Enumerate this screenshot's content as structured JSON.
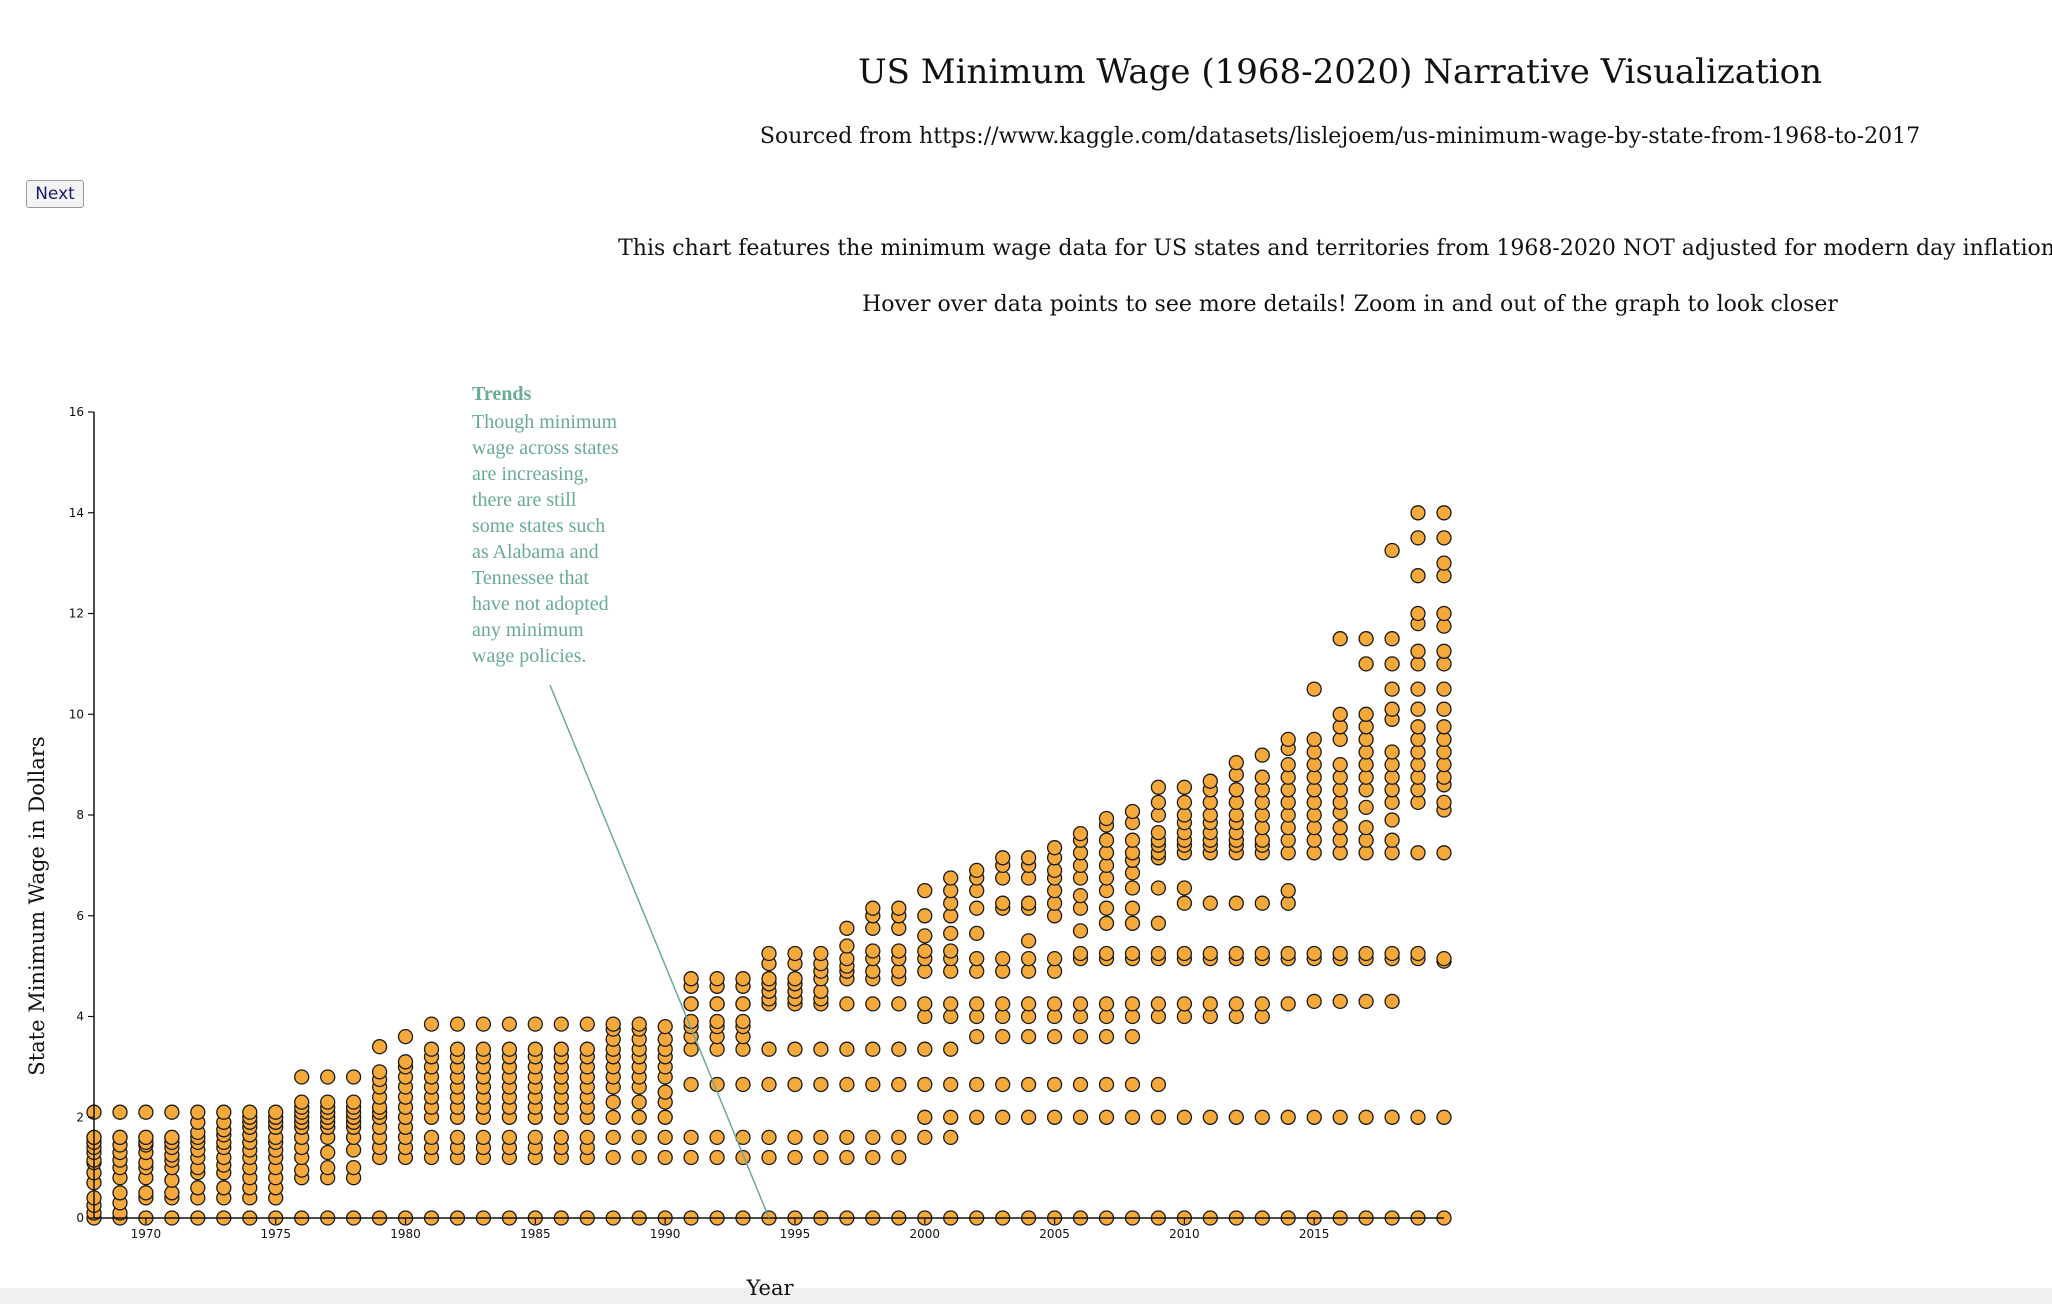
{
  "header": {
    "title": "US Minimum Wage (1968-2020) Narrative Visualization",
    "source": "Sourced from https://www.kaggle.com/datasets/lislejoem/us-minimum-wage-by-state-from-1968-to-2017",
    "description_1": "This chart features the minimum wage data for US states and territories from 1968-2020 NOT adjusted for modern day inflation.",
    "description_2": "Hover over data points to see more details! Zoom in and out of the graph to look closer"
  },
  "controls": {
    "next_label": "Next"
  },
  "colors": {
    "point_fill": "#f5a93a",
    "point_stroke": "#1a1a1a",
    "annotation": "#6aaa98",
    "axis": "#111111"
  },
  "chart_data": {
    "type": "scatter",
    "xlabel": "Year",
    "ylabel": "State Minimum Wage in Dollars",
    "xlim": [
      1968,
      2020
    ],
    "ylim": [
      0,
      16
    ],
    "x_ticks": [
      1970,
      1975,
      1980,
      1985,
      1990,
      1995,
      2000,
      2005,
      2010,
      2015
    ],
    "y_ticks": [
      0,
      2,
      4,
      6,
      8,
      10,
      12,
      14,
      16
    ],
    "grid": false,
    "annotation": {
      "title": "Trends",
      "lines": [
        "Though minimum",
        "wage across states",
        "are increasing,",
        "there are still",
        "some states such",
        "as Alabama and",
        "Tennessee that",
        "have not adopted",
        "any minimum",
        "wage policies."
      ],
      "target": {
        "x": 1994,
        "y": 0
      }
    },
    "points": [
      {
        "year": 1968,
        "wages": [
          0,
          0.1,
          0.25,
          0.4,
          0.7,
          0.9,
          1.1,
          1.15,
          1.3,
          1.4,
          1.5,
          1.6,
          1.6,
          2.1
        ]
      },
      {
        "year": 1969,
        "wages": [
          0,
          0.1,
          0.3,
          0.5,
          0.8,
          1.0,
          1.15,
          1.3,
          1.45,
          1.6,
          1.6,
          2.1
        ]
      },
      {
        "year": 1970,
        "wages": [
          0,
          0.4,
          0.5,
          0.8,
          1.0,
          1.1,
          1.3,
          1.45,
          1.5,
          1.6,
          1.6,
          2.1
        ]
      },
      {
        "year": 1971,
        "wages": [
          0,
          0.4,
          0.5,
          0.75,
          1.0,
          1.15,
          1.25,
          1.4,
          1.5,
          1.6,
          1.6,
          2.1
        ]
      },
      {
        "year": 1972,
        "wages": [
          0,
          0.4,
          0.6,
          0.9,
          1.0,
          1.2,
          1.35,
          1.5,
          1.6,
          1.7,
          1.9,
          2.1
        ]
      },
      {
        "year": 1973,
        "wages": [
          0,
          0.4,
          0.6,
          0.9,
          1.05,
          1.2,
          1.4,
          1.5,
          1.65,
          1.75,
          1.9,
          2.1
        ]
      },
      {
        "year": 1974,
        "wages": [
          0,
          0.4,
          0.6,
          0.8,
          1.0,
          1.2,
          1.35,
          1.5,
          1.65,
          1.8,
          1.9,
          2.0,
          2.1
        ]
      },
      {
        "year": 1975,
        "wages": [
          0,
          0.4,
          0.6,
          0.8,
          1.0,
          1.2,
          1.35,
          1.5,
          1.6,
          1.8,
          1.9,
          2.0,
          2.1
        ]
      },
      {
        "year": 1976,
        "wages": [
          0,
          0.8,
          0.95,
          1.2,
          1.4,
          1.6,
          1.8,
          1.9,
          2.0,
          2.1,
          2.2,
          2.3,
          2.8
        ]
      },
      {
        "year": 1977,
        "wages": [
          0,
          0.8,
          1.0,
          1.3,
          1.6,
          1.8,
          1.9,
          2.0,
          2.1,
          2.2,
          2.3,
          2.8
        ]
      },
      {
        "year": 1978,
        "wages": [
          0,
          0.8,
          1.0,
          1.35,
          1.6,
          1.8,
          1.9,
          2.0,
          2.1,
          2.2,
          2.3,
          2.8
        ]
      },
      {
        "year": 1979,
        "wages": [
          0,
          1.2,
          1.4,
          1.6,
          1.8,
          2.0,
          2.1,
          2.2,
          2.4,
          2.6,
          2.75,
          2.9,
          3.4
        ]
      },
      {
        "year": 1980,
        "wages": [
          0,
          1.2,
          1.4,
          1.6,
          1.8,
          2.0,
          2.2,
          2.4,
          2.6,
          2.8,
          3.0,
          3.1,
          3.6
        ]
      },
      {
        "year": 1981,
        "wages": [
          0,
          1.2,
          1.4,
          1.6,
          2.0,
          2.2,
          2.4,
          2.6,
          2.8,
          3.0,
          3.2,
          3.35,
          3.85
        ]
      },
      {
        "year": 1982,
        "wages": [
          0,
          1.2,
          1.4,
          1.6,
          2.0,
          2.2,
          2.4,
          2.6,
          2.8,
          3.0,
          3.2,
          3.35,
          3.85
        ]
      },
      {
        "year": 1983,
        "wages": [
          0,
          1.2,
          1.4,
          1.6,
          2.0,
          2.2,
          2.4,
          2.6,
          2.8,
          3.0,
          3.2,
          3.35,
          3.85
        ]
      },
      {
        "year": 1984,
        "wages": [
          0,
          1.2,
          1.4,
          1.6,
          2.0,
          2.2,
          2.4,
          2.6,
          2.8,
          3.0,
          3.2,
          3.35,
          3.85
        ]
      },
      {
        "year": 1985,
        "wages": [
          0,
          1.2,
          1.4,
          1.6,
          2.0,
          2.2,
          2.4,
          2.6,
          2.8,
          3.0,
          3.2,
          3.35,
          3.85
        ]
      },
      {
        "year": 1986,
        "wages": [
          0,
          1.2,
          1.4,
          1.6,
          2.0,
          2.2,
          2.4,
          2.6,
          2.8,
          3.0,
          3.2,
          3.35,
          3.85
        ]
      },
      {
        "year": 1987,
        "wages": [
          0,
          1.2,
          1.4,
          1.6,
          2.0,
          2.2,
          2.4,
          2.6,
          2.8,
          3.0,
          3.2,
          3.35,
          3.85
        ]
      },
      {
        "year": 1988,
        "wages": [
          0,
          1.2,
          1.6,
          2.0,
          2.3,
          2.6,
          2.8,
          3.0,
          3.2,
          3.35,
          3.55,
          3.75,
          3.85
        ]
      },
      {
        "year": 1989,
        "wages": [
          0,
          1.2,
          1.6,
          2.0,
          2.3,
          2.6,
          2.8,
          3.0,
          3.2,
          3.35,
          3.55,
          3.75,
          3.85
        ]
      },
      {
        "year": 1990,
        "wages": [
          0,
          1.2,
          1.6,
          2.0,
          2.3,
          2.5,
          2.8,
          3.0,
          3.2,
          3.35,
          3.55,
          3.8
        ]
      },
      {
        "year": 1991,
        "wages": [
          0,
          1.2,
          1.6,
          2.65,
          3.35,
          3.6,
          3.8,
          3.9,
          4.25,
          4.25,
          4.6,
          4.75
        ]
      },
      {
        "year": 1992,
        "wages": [
          0,
          1.2,
          1.6,
          2.65,
          3.35,
          3.6,
          3.8,
          3.9,
          4.25,
          4.25,
          4.6,
          4.75
        ]
      },
      {
        "year": 1993,
        "wages": [
          0,
          1.2,
          1.6,
          2.65,
          3.35,
          3.6,
          3.8,
          3.9,
          4.25,
          4.25,
          4.6,
          4.75
        ]
      },
      {
        "year": 1994,
        "wages": [
          0,
          1.2,
          1.6,
          2.65,
          3.35,
          4.25,
          4.35,
          4.5,
          4.65,
          4.75,
          5.05,
          5.25
        ]
      },
      {
        "year": 1995,
        "wages": [
          0,
          1.2,
          1.6,
          2.65,
          3.35,
          4.25,
          4.35,
          4.5,
          4.65,
          4.75,
          5.05,
          5.25
        ]
      },
      {
        "year": 1996,
        "wages": [
          0,
          1.2,
          1.6,
          2.65,
          3.35,
          4.25,
          4.35,
          4.5,
          4.75,
          4.9,
          5.05,
          5.25
        ]
      },
      {
        "year": 1997,
        "wages": [
          0,
          1.2,
          1.6,
          2.65,
          3.35,
          4.25,
          4.75,
          4.9,
          5.0,
          5.15,
          5.4,
          5.75
        ]
      },
      {
        "year": 1998,
        "wages": [
          0,
          1.2,
          1.6,
          2.65,
          3.35,
          4.25,
          4.75,
          4.9,
          5.15,
          5.3,
          5.75,
          6.0,
          6.15
        ]
      },
      {
        "year": 1999,
        "wages": [
          0,
          1.2,
          1.6,
          2.65,
          3.35,
          4.25,
          4.75,
          4.9,
          5.15,
          5.3,
          5.75,
          6.0,
          6.15
        ]
      },
      {
        "year": 2000,
        "wages": [
          0,
          1.6,
          2.0,
          2.65,
          3.35,
          4.0,
          4.25,
          4.9,
          5.15,
          5.3,
          5.6,
          6.0,
          6.5
        ]
      },
      {
        "year": 2001,
        "wages": [
          0,
          1.6,
          2.0,
          2.65,
          3.35,
          4.0,
          4.25,
          4.9,
          5.15,
          5.3,
          5.65,
          6.0,
          6.25,
          6.5,
          6.75
        ]
      },
      {
        "year": 2002,
        "wages": [
          0,
          2.0,
          2.65,
          3.6,
          4.0,
          4.25,
          4.9,
          5.15,
          5.65,
          6.15,
          6.5,
          6.75,
          6.9
        ]
      },
      {
        "year": 2003,
        "wages": [
          0,
          2.0,
          2.65,
          3.6,
          4.0,
          4.25,
          4.9,
          5.15,
          6.15,
          6.25,
          6.75,
          7.0,
          7.15
        ]
      },
      {
        "year": 2004,
        "wages": [
          0,
          2.0,
          2.65,
          3.6,
          4.0,
          4.25,
          4.9,
          5.15,
          5.5,
          6.15,
          6.25,
          6.75,
          7.0,
          7.15
        ]
      },
      {
        "year": 2005,
        "wages": [
          0,
          2.0,
          2.65,
          3.6,
          4.0,
          4.25,
          4.9,
          5.15,
          6.0,
          6.25,
          6.5,
          6.75,
          6.9,
          7.15,
          7.35
        ]
      },
      {
        "year": 2006,
        "wages": [
          0,
          2.0,
          2.65,
          3.6,
          4.0,
          4.25,
          5.15,
          5.25,
          5.7,
          6.15,
          6.4,
          6.75,
          7.0,
          7.25,
          7.5,
          7.63
        ]
      },
      {
        "year": 2007,
        "wages": [
          0,
          2.0,
          2.65,
          3.6,
          4.0,
          4.25,
          5.15,
          5.25,
          5.85,
          6.15,
          6.5,
          6.75,
          7.0,
          7.25,
          7.5,
          7.8,
          7.93
        ]
      },
      {
        "year": 2008,
        "wages": [
          0,
          2.0,
          2.65,
          3.6,
          4.0,
          4.25,
          5.15,
          5.25,
          5.85,
          6.15,
          6.55,
          6.85,
          7.1,
          7.25,
          7.5,
          7.85,
          8.07
        ]
      },
      {
        "year": 2009,
        "wages": [
          0,
          2.0,
          2.65,
          4.0,
          4.25,
          5.15,
          5.25,
          5.85,
          6.55,
          7.15,
          7.25,
          7.4,
          7.5,
          7.65,
          8.0,
          8.25,
          8.55
        ]
      },
      {
        "year": 2010,
        "wages": [
          0,
          2.0,
          4.0,
          4.25,
          5.15,
          5.25,
          6.25,
          6.55,
          7.25,
          7.4,
          7.5,
          7.65,
          7.85,
          8.0,
          8.25,
          8.55
        ]
      },
      {
        "year": 2011,
        "wages": [
          0,
          2.0,
          4.0,
          4.25,
          5.15,
          5.25,
          6.25,
          7.25,
          7.4,
          7.5,
          7.65,
          7.85,
          8.0,
          8.25,
          8.5,
          8.67
        ]
      },
      {
        "year": 2012,
        "wages": [
          0,
          2.0,
          4.0,
          4.25,
          5.15,
          5.25,
          6.25,
          7.25,
          7.4,
          7.5,
          7.65,
          7.85,
          8.0,
          8.25,
          8.5,
          8.8,
          9.04
        ]
      },
      {
        "year": 2013,
        "wages": [
          0,
          2.0,
          4.0,
          4.25,
          5.15,
          5.25,
          6.25,
          7.25,
          7.4,
          7.5,
          7.75,
          8.0,
          8.25,
          8.5,
          8.75,
          9.19
        ]
      },
      {
        "year": 2014,
        "wages": [
          0,
          2.0,
          4.25,
          5.15,
          5.25,
          6.25,
          6.5,
          7.25,
          7.5,
          7.75,
          8.0,
          8.25,
          8.5,
          8.75,
          9.0,
          9.32,
          9.5
        ]
      },
      {
        "year": 2015,
        "wages": [
          0,
          2.0,
          4.3,
          5.15,
          5.25,
          7.25,
          7.5,
          7.75,
          8.0,
          8.25,
          8.5,
          8.75,
          9.0,
          9.25,
          9.5,
          10.5
        ]
      },
      {
        "year": 2016,
        "wages": [
          0,
          2.0,
          4.3,
          5.15,
          5.25,
          7.25,
          7.5,
          7.75,
          8.05,
          8.25,
          8.5,
          8.75,
          9.0,
          9.5,
          9.75,
          10.0,
          11.5
        ]
      },
      {
        "year": 2017,
        "wages": [
          0,
          2.0,
          4.3,
          5.15,
          5.25,
          7.25,
          7.5,
          7.75,
          8.15,
          8.5,
          8.75,
          9.0,
          9.25,
          9.5,
          9.75,
          10.0,
          11.0,
          11.5
        ]
      },
      {
        "year": 2018,
        "wages": [
          0,
          2.0,
          4.3,
          5.15,
          5.25,
          7.25,
          7.5,
          7.9,
          8.25,
          8.5,
          8.75,
          9.0,
          9.25,
          9.9,
          10.1,
          10.5,
          11.0,
          11.5,
          13.25
        ]
      },
      {
        "year": 2019,
        "wages": [
          0,
          2.0,
          5.15,
          5.25,
          7.25,
          8.25,
          8.5,
          8.75,
          9.0,
          9.25,
          9.5,
          9.75,
          10.1,
          10.5,
          11.0,
          11.25,
          11.8,
          12.0,
          12.75,
          13.5,
          14.0
        ]
      },
      {
        "year": 2020,
        "wages": [
          0,
          2.0,
          5.1,
          5.15,
          7.25,
          8.1,
          8.25,
          8.6,
          8.75,
          9.0,
          9.25,
          9.5,
          9.75,
          10.1,
          10.5,
          11.0,
          11.25,
          11.75,
          12.0,
          12.75,
          13.0,
          13.5,
          14.0
        ]
      }
    ]
  }
}
